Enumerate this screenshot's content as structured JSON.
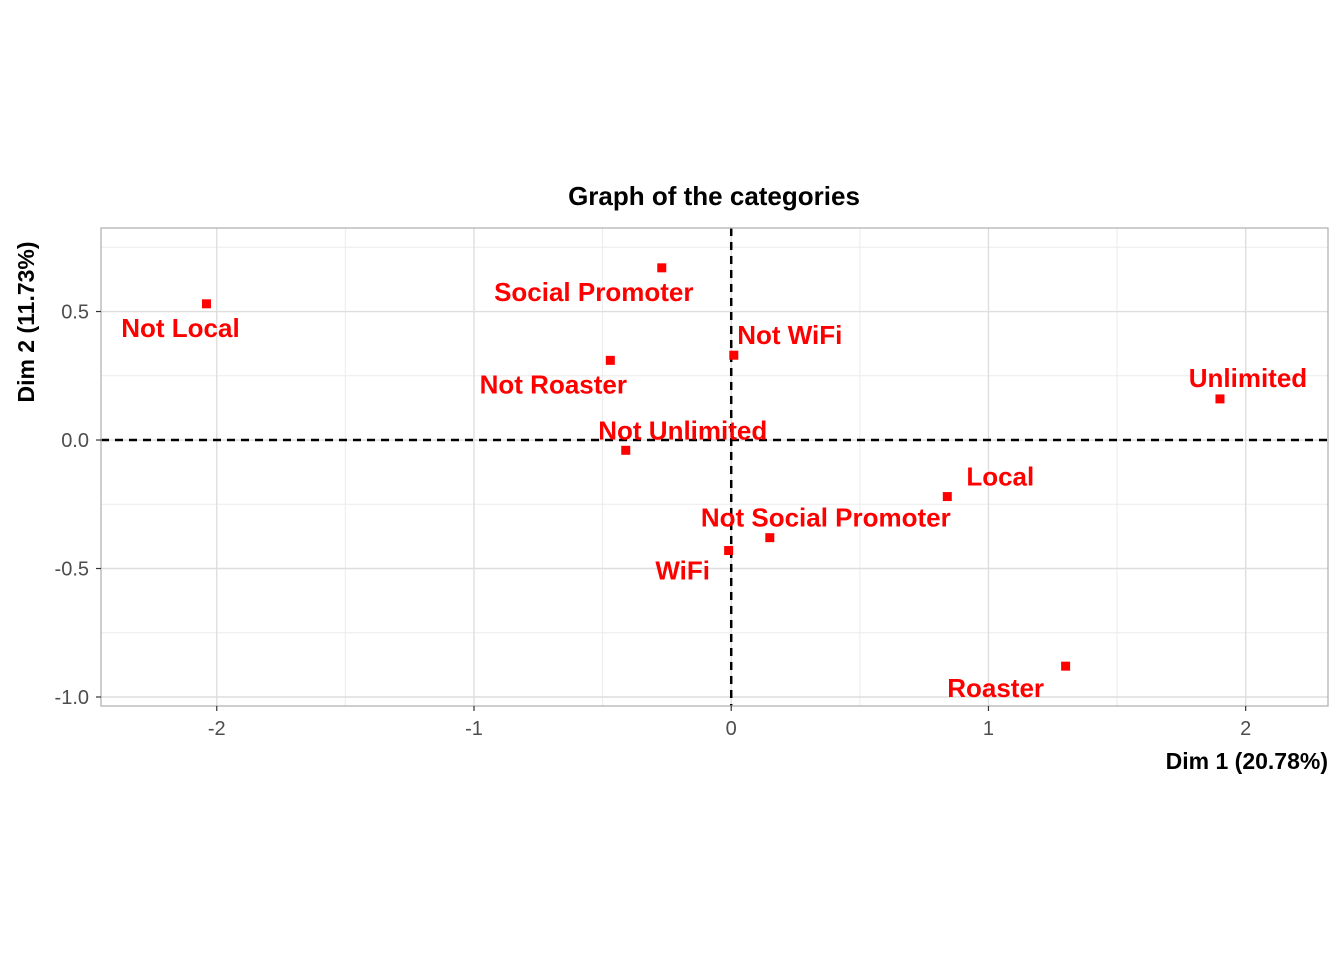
{
  "chart_data": {
    "type": "scatter",
    "title": "Graph of the categories",
    "xlabel": "Dim 1 (20.78%)",
    "ylabel": "Dim 2 (11.73%)",
    "xlim": [
      -2.45,
      2.32
    ],
    "ylim": [
      -1.035,
      0.825
    ],
    "x_ticks": [
      -2,
      -1,
      0,
      1,
      2
    ],
    "x_tick_labels": [
      "-2",
      "-1",
      "0",
      "1",
      "2"
    ],
    "y_ticks": [
      -1.0,
      -0.5,
      0.0,
      0.5
    ],
    "y_tick_labels": [
      "-1.0",
      "-0.5",
      "0.0",
      "0.5"
    ],
    "grid": true,
    "reference_lines": {
      "x": 0,
      "y": 0,
      "style": "dashed"
    },
    "point_color": "#ff0000",
    "points": [
      {
        "label": "Not Local",
        "x": -2.04,
        "y": 0.53
      },
      {
        "label": "Social Promoter",
        "x": -0.27,
        "y": 0.67
      },
      {
        "label": "Not Roaster",
        "x": -0.47,
        "y": 0.31
      },
      {
        "label": "Not WiFi",
        "x": 0.01,
        "y": 0.33
      },
      {
        "label": "Unlimited",
        "x": 1.9,
        "y": 0.16
      },
      {
        "label": "Not Unlimited",
        "x": -0.41,
        "y": -0.04
      },
      {
        "label": "Local",
        "x": 0.84,
        "y": -0.22
      },
      {
        "label": "Not Social Promoter",
        "x": 0.15,
        "y": -0.38
      },
      {
        "label": "WiFi",
        "x": -0.01,
        "y": -0.43
      },
      {
        "label": "Roaster",
        "x": 1.3,
        "y": -0.88
      }
    ]
  }
}
